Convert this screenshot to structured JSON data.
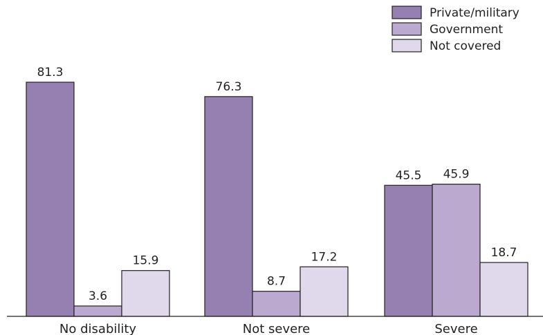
{
  "chart_data": {
    "type": "bar",
    "title": "",
    "xlabel": "",
    "ylabel": "",
    "categories": [
      "No disability",
      "Not severe",
      "Severe"
    ],
    "series": [
      {
        "name": "Private/military",
        "color": "#9580b1",
        "values": [
          81.3,
          76.3,
          45.5
        ]
      },
      {
        "name": "Government",
        "color": "#bba9cf",
        "values": [
          3.6,
          8.7,
          45.9
        ]
      },
      {
        "name": "Not covered",
        "color": "#e0d8eb",
        "values": [
          15.9,
          17.2,
          18.7
        ]
      }
    ],
    "value_labels": [
      [
        "81.3",
        "76.3",
        "45.5"
      ],
      [
        "3.6",
        "8.7",
        "45.9"
      ],
      [
        "15.9",
        "17.2",
        "18.7"
      ]
    ],
    "ylim": [
      0,
      81.3
    ],
    "grid": false,
    "legend_position": "top-right"
  }
}
